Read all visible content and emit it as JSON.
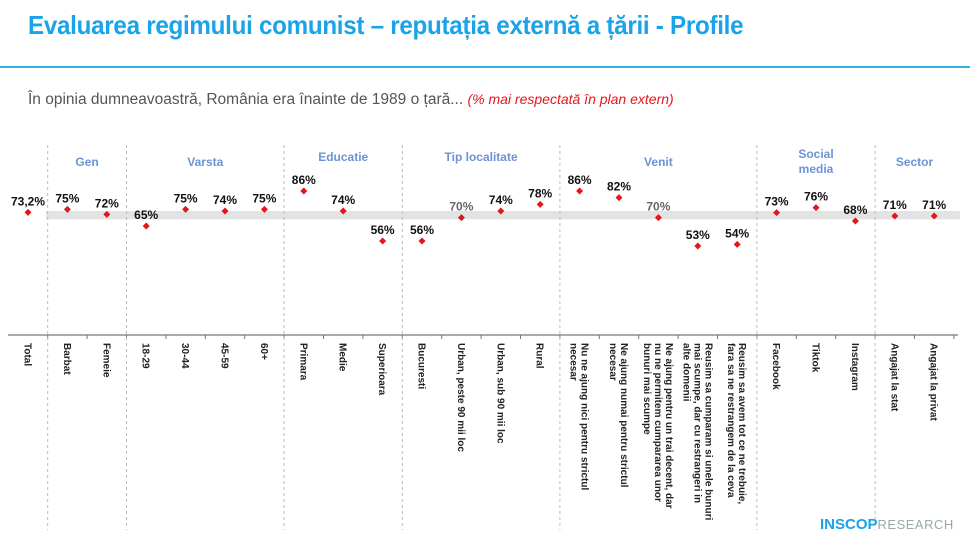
{
  "title": "Evaluarea regimului comunist – reputația externă a țării - Profile",
  "subtitle": {
    "question": "În opinia dumneavoastră, România era înainte de 1989 o țară...",
    "note": "(% mai respectată în plan extern)"
  },
  "logo": {
    "brand": "INSCOP",
    "suffix": "RESEARCH"
  },
  "chart_data": {
    "type": "scatter",
    "ylim": [
      40,
      100
    ],
    "reference_band": [
      69,
      74
    ],
    "colors": {
      "marker": "#e8141c",
      "group_label": "#6b93d6",
      "band": "#e3e3e3",
      "value_label": "#111111",
      "value_label_in_band": "#666666"
    },
    "groups": [
      {
        "label": "",
        "categories": [
          "Total"
        ],
        "values": [
          73.2
        ],
        "value_labels": [
          "73,2%"
        ]
      },
      {
        "label": "Gen",
        "categories": [
          "Barbat",
          "Femeie"
        ],
        "values": [
          75,
          72
        ],
        "value_labels": [
          "75%",
          "72%"
        ]
      },
      {
        "label": "Varsta",
        "categories": [
          "18-29",
          "30-44",
          "45-59",
          "60+"
        ],
        "values": [
          65,
          75,
          74,
          75
        ],
        "value_labels": [
          "65%",
          "75%",
          "74%",
          "75%"
        ]
      },
      {
        "label": "Educatie",
        "categories": [
          "Primara",
          "Medie",
          "Superioara"
        ],
        "values": [
          86,
          74,
          56
        ],
        "value_labels": [
          "86%",
          "74%",
          "56%"
        ]
      },
      {
        "label": "Tip localitate",
        "categories": [
          "Bucuresti",
          "Urban, peste 90 mii loc",
          "Urban, sub 90 mii loc",
          "Rural"
        ],
        "values": [
          56,
          70,
          74,
          78
        ],
        "value_labels": [
          "56%",
          "70%",
          "74%",
          "78%"
        ]
      },
      {
        "label": "Venit",
        "categories": [
          "Nu ne ajung nici pentru strictul necesar",
          "Ne ajung numai pentru strictul necesar",
          "Ne ajung pentru un trai decent, dar nu ne permitem cumpararea unor bunuri mai scumpe",
          "Reusim sa cumparam si unele bunuri mai scumpe, dar cu restrangeri in alte domenii",
          "Reusim sa avem tot ce ne trebuie, fara sa ne restrangem de la ceva"
        ],
        "values": [
          86,
          82,
          70,
          53,
          54
        ],
        "value_labels": [
          "86%",
          "82%",
          "70%",
          "53%",
          "54%"
        ]
      },
      {
        "label": "Social media",
        "categories": [
          "Facebook",
          "Tiktok",
          "Instagram"
        ],
        "values": [
          73,
          76,
          68
        ],
        "value_labels": [
          "73%",
          "76%",
          "68%"
        ]
      },
      {
        "label": "Sector",
        "categories": [
          "Angajat la stat",
          "Angajat la privat"
        ],
        "values": [
          71,
          71
        ],
        "value_labels": [
          "71%",
          "71%"
        ]
      }
    ]
  }
}
